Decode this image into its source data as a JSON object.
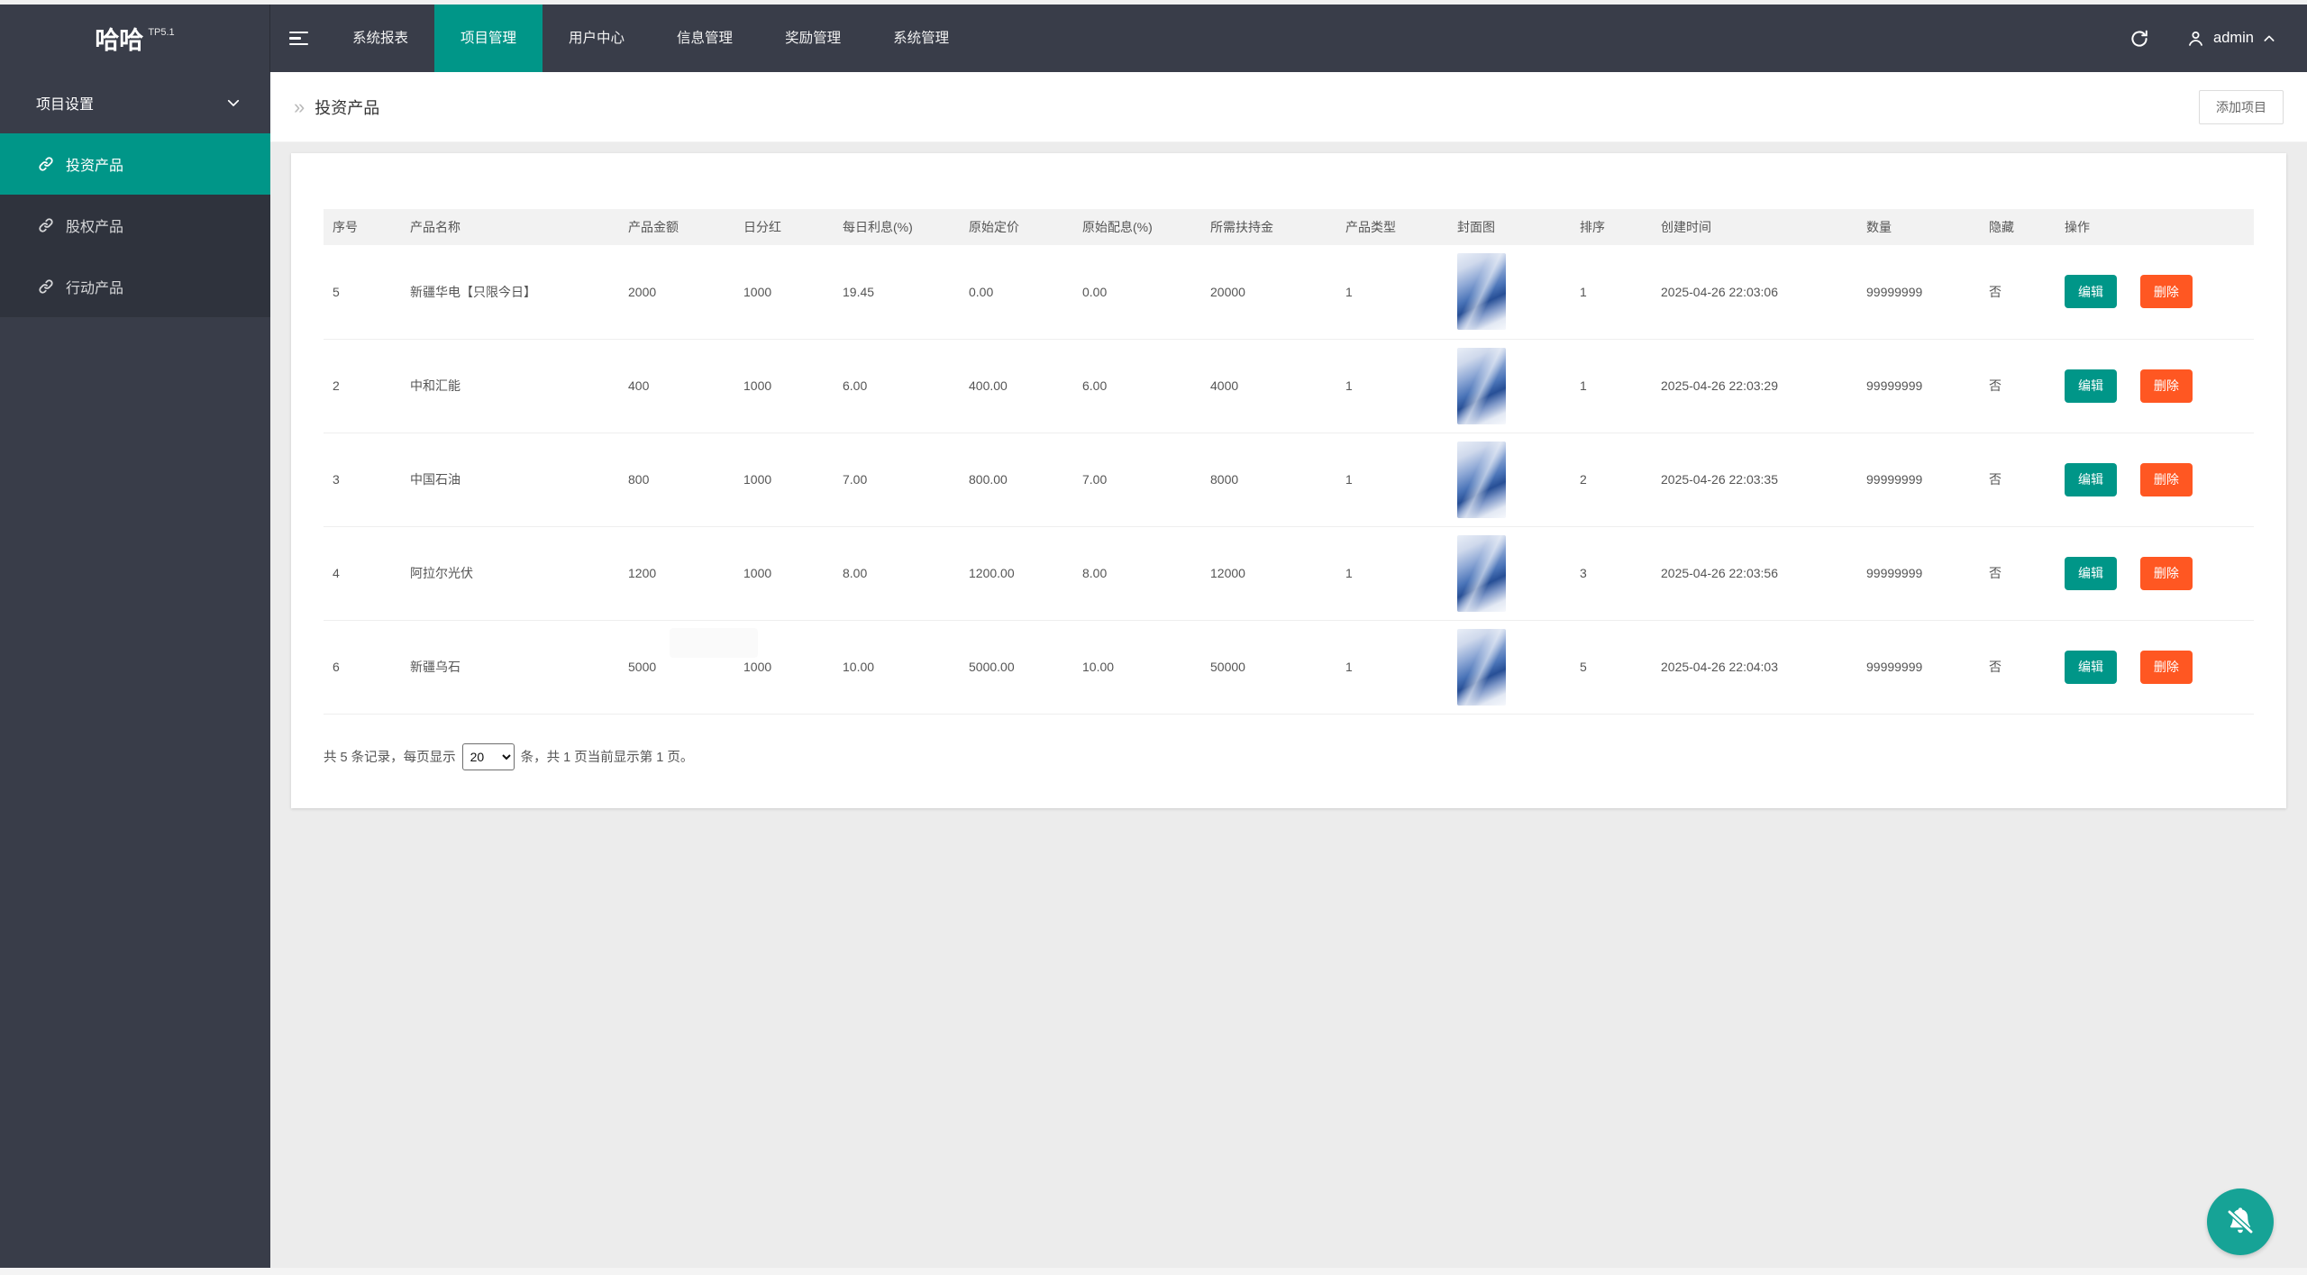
{
  "brand": {
    "name": "哈哈",
    "version": "TP5.1"
  },
  "topnav": {
    "items": [
      {
        "label": "系统报表",
        "active": false
      },
      {
        "label": "项目管理",
        "active": true
      },
      {
        "label": "用户中心",
        "active": false
      },
      {
        "label": "信息管理",
        "active": false
      },
      {
        "label": "奖励管理",
        "active": false
      },
      {
        "label": "系统管理",
        "active": false
      }
    ],
    "user": {
      "name": "admin"
    }
  },
  "sidebar": {
    "group_label": "项目设置",
    "items": [
      {
        "label": "投资产品",
        "active": true
      },
      {
        "label": "股权产品",
        "active": false
      },
      {
        "label": "行动产品",
        "active": false
      }
    ]
  },
  "page": {
    "breadcrumb_icon": "»",
    "title": "投资产品",
    "add_button": "添加项目"
  },
  "table": {
    "headers": [
      "序号",
      "产品名称",
      "产品金额",
      "日分红",
      "每日利息(%)",
      "原始定价",
      "原始配息(%)",
      "所需扶持金",
      "产品类型",
      "封面图",
      "排序",
      "创建时间",
      "数量",
      "隐藏",
      "操作"
    ],
    "rows": [
      {
        "index": "5",
        "name": "新疆华电【只限今日】",
        "amount": "2000",
        "dividend": "1000",
        "daily_interest": "19.45",
        "original_price": "0.00",
        "original_interest": "0.00",
        "support_fund": "20000",
        "product_type": "1",
        "sort": "1",
        "created_at": "2025-04-26 22:03:06",
        "quantity": "99999999",
        "hidden": "否"
      },
      {
        "index": "2",
        "name": "中和汇能",
        "amount": "400",
        "dividend": "1000",
        "daily_interest": "6.00",
        "original_price": "400.00",
        "original_interest": "6.00",
        "support_fund": "4000",
        "product_type": "1",
        "sort": "1",
        "created_at": "2025-04-26 22:03:29",
        "quantity": "99999999",
        "hidden": "否"
      },
      {
        "index": "3",
        "name": "中国石油",
        "amount": "800",
        "dividend": "1000",
        "daily_interest": "7.00",
        "original_price": "800.00",
        "original_interest": "7.00",
        "support_fund": "8000",
        "product_type": "1",
        "sort": "2",
        "created_at": "2025-04-26 22:03:35",
        "quantity": "99999999",
        "hidden": "否"
      },
      {
        "index": "4",
        "name": "阿拉尔光伏",
        "amount": "1200",
        "dividend": "1000",
        "daily_interest": "8.00",
        "original_price": "1200.00",
        "original_interest": "8.00",
        "support_fund": "12000",
        "product_type": "1",
        "sort": "3",
        "created_at": "2025-04-26 22:03:56",
        "quantity": "99999999",
        "hidden": "否"
      },
      {
        "index": "6",
        "name": "新疆乌石",
        "amount": "5000",
        "dividend": "1000",
        "daily_interest": "10.00",
        "original_price": "5000.00",
        "original_interest": "10.00",
        "support_fund": "50000",
        "product_type": "1",
        "sort": "5",
        "created_at": "2025-04-26 22:04:03",
        "quantity": "99999999",
        "hidden": "否"
      }
    ],
    "row_actions": {
      "edit": "编辑",
      "delete": "删除"
    }
  },
  "pagination": {
    "prefix": "共 5 条记录，每页显示",
    "page_size": "20",
    "suffix": "条，共 1 页当前显示第 1 页。"
  },
  "colors": {
    "accent_teal": "#009688",
    "danger_orange": "#FF5722",
    "header_bg": "#393D49",
    "sidebar_child_bg": "#2F333D"
  }
}
